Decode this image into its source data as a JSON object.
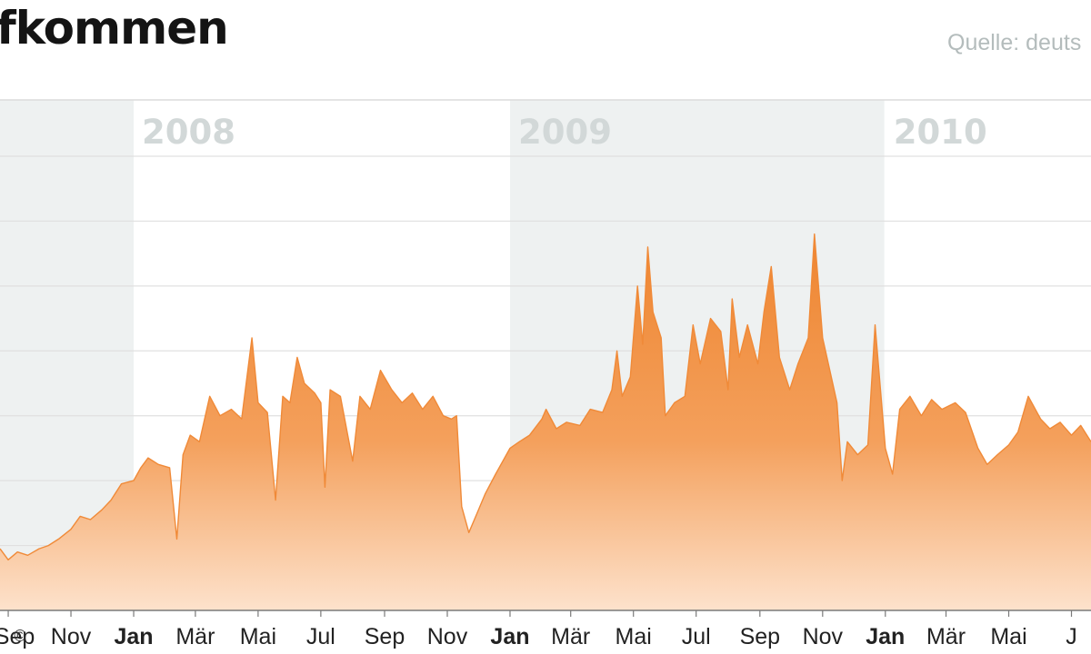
{
  "header": {
    "title": "fkommen",
    "source": "Quelle: deuts"
  },
  "chart_data": {
    "type": "area",
    "title": "fkommen",
    "subtitle": "",
    "xlabel": "",
    "ylabel": "",
    "grid": true,
    "legend": "none",
    "color": "#f08a38",
    "years": [
      {
        "label": "2008",
        "start": "2008-01-01",
        "end": "2008-12-31",
        "shaded": false
      },
      {
        "label": "2009",
        "start": "2009-01-01",
        "end": "2009-12-31",
        "shaded": true
      },
      {
        "label": "2010",
        "start": "2010-01-01",
        "end": "2010-12-31",
        "shaded": false
      }
    ],
    "shaded_before": "2008-01-01",
    "x_range": [
      "2007-08-24",
      "2010-07-20"
    ],
    "y_range": [
      0,
      7
    ],
    "y_gridlines": [
      1,
      2,
      3,
      4,
      5,
      6,
      7
    ],
    "x_ticks": [
      {
        "label": "Sep",
        "date": "2007-09-01",
        "bold": false
      },
      {
        "label": "Nov",
        "date": "2007-11-01",
        "bold": false
      },
      {
        "label": "Jan",
        "date": "2008-01-01",
        "bold": true
      },
      {
        "label": "Mär",
        "date": "2008-03-01",
        "bold": false
      },
      {
        "label": "Mai",
        "date": "2008-05-01",
        "bold": false
      },
      {
        "label": "Jul",
        "date": "2008-07-01",
        "bold": false
      },
      {
        "label": "Sep",
        "date": "2008-09-01",
        "bold": false
      },
      {
        "label": "Nov",
        "date": "2008-11-01",
        "bold": false
      },
      {
        "label": "Jan",
        "date": "2009-01-01",
        "bold": true
      },
      {
        "label": "Mär",
        "date": "2009-03-01",
        "bold": false
      },
      {
        "label": "Mai",
        "date": "2009-05-01",
        "bold": false
      },
      {
        "label": "Jul",
        "date": "2009-07-01",
        "bold": false
      },
      {
        "label": "Sep",
        "date": "2009-09-01",
        "bold": false
      },
      {
        "label": "Nov",
        "date": "2009-11-01",
        "bold": false
      },
      {
        "label": "Jan",
        "date": "2010-01-01",
        "bold": true
      },
      {
        "label": "Mär",
        "date": "2010-03-01",
        "bold": false
      },
      {
        "label": "Mai",
        "date": "2010-05-01",
        "bold": false
      },
      {
        "label": "J",
        "date": "2010-07-01",
        "bold": false
      }
    ],
    "copyright": "©",
    "points": [
      [
        "2007-08-24",
        0.95
      ],
      [
        "2007-09-01",
        0.78
      ],
      [
        "2007-09-10",
        0.9
      ],
      [
        "2007-09-20",
        0.85
      ],
      [
        "2007-10-01",
        0.95
      ],
      [
        "2007-10-10",
        1.0
      ],
      [
        "2007-10-20",
        1.1
      ],
      [
        "2007-11-01",
        1.25
      ],
      [
        "2007-11-10",
        1.45
      ],
      [
        "2007-11-20",
        1.4
      ],
      [
        "2007-12-01",
        1.55
      ],
      [
        "2007-12-10",
        1.7
      ],
      [
        "2007-12-20",
        1.95
      ],
      [
        "2008-01-01",
        2.0
      ],
      [
        "2008-01-08",
        2.2
      ],
      [
        "2008-01-15",
        2.35
      ],
      [
        "2008-01-25",
        2.25
      ],
      [
        "2008-02-05",
        2.2
      ],
      [
        "2008-02-12",
        1.1
      ],
      [
        "2008-02-18",
        2.4
      ],
      [
        "2008-02-25",
        2.7
      ],
      [
        "2008-03-05",
        2.6
      ],
      [
        "2008-03-15",
        3.3
      ],
      [
        "2008-03-25",
        3.0
      ],
      [
        "2008-04-05",
        3.1
      ],
      [
        "2008-04-15",
        2.95
      ],
      [
        "2008-04-25",
        4.2
      ],
      [
        "2008-05-01",
        3.2
      ],
      [
        "2008-05-10",
        3.05
      ],
      [
        "2008-05-18",
        1.7
      ],
      [
        "2008-05-25",
        3.3
      ],
      [
        "2008-06-01",
        3.2
      ],
      [
        "2008-06-08",
        3.9
      ],
      [
        "2008-06-15",
        3.5
      ],
      [
        "2008-06-25",
        3.35
      ],
      [
        "2008-07-01",
        3.2
      ],
      [
        "2008-07-05",
        1.9
      ],
      [
        "2008-07-10",
        3.4
      ],
      [
        "2008-07-20",
        3.3
      ],
      [
        "2008-08-01",
        2.3
      ],
      [
        "2008-08-08",
        3.3
      ],
      [
        "2008-08-18",
        3.1
      ],
      [
        "2008-08-28",
        3.7
      ],
      [
        "2008-09-08",
        3.4
      ],
      [
        "2008-09-18",
        3.2
      ],
      [
        "2008-09-28",
        3.35
      ],
      [
        "2008-10-08",
        3.1
      ],
      [
        "2008-10-18",
        3.3
      ],
      [
        "2008-10-28",
        3.0
      ],
      [
        "2008-11-05",
        2.95
      ],
      [
        "2008-11-10",
        3.0
      ],
      [
        "2008-11-15",
        1.6
      ],
      [
        "2008-11-22",
        1.2
      ],
      [
        "2008-11-30",
        1.5
      ],
      [
        "2008-12-08",
        1.8
      ],
      [
        "2008-12-18",
        2.1
      ],
      [
        "2009-01-01",
        2.5
      ],
      [
        "2009-01-10",
        2.6
      ],
      [
        "2009-01-20",
        2.7
      ],
      [
        "2009-02-01",
        2.95
      ],
      [
        "2009-02-05",
        3.1
      ],
      [
        "2009-02-15",
        2.8
      ],
      [
        "2009-02-25",
        2.9
      ],
      [
        "2009-03-10",
        2.85
      ],
      [
        "2009-03-20",
        3.1
      ],
      [
        "2009-04-01",
        3.05
      ],
      [
        "2009-04-10",
        3.4
      ],
      [
        "2009-04-15",
        4.0
      ],
      [
        "2009-04-20",
        3.3
      ],
      [
        "2009-04-28",
        3.6
      ],
      [
        "2009-05-05",
        5.0
      ],
      [
        "2009-05-10",
        4.1
      ],
      [
        "2009-05-15",
        5.6
      ],
      [
        "2009-05-20",
        4.6
      ],
      [
        "2009-05-28",
        4.2
      ],
      [
        "2009-06-01",
        3.0
      ],
      [
        "2009-06-10",
        3.2
      ],
      [
        "2009-06-20",
        3.3
      ],
      [
        "2009-06-28",
        4.4
      ],
      [
        "2009-07-05",
        3.8
      ],
      [
        "2009-07-15",
        4.5
      ],
      [
        "2009-07-25",
        4.3
      ],
      [
        "2009-08-01",
        3.4
      ],
      [
        "2009-08-05",
        4.8
      ],
      [
        "2009-08-12",
        3.9
      ],
      [
        "2009-08-20",
        4.4
      ],
      [
        "2009-08-30",
        3.8
      ],
      [
        "2009-09-05",
        4.6
      ],
      [
        "2009-09-12",
        5.3
      ],
      [
        "2009-09-20",
        3.9
      ],
      [
        "2009-09-30",
        3.4
      ],
      [
        "2009-10-08",
        3.8
      ],
      [
        "2009-10-18",
        4.2
      ],
      [
        "2009-10-24",
        5.8
      ],
      [
        "2009-11-01",
        4.2
      ],
      [
        "2009-11-08",
        3.7
      ],
      [
        "2009-11-15",
        3.2
      ],
      [
        "2009-11-20",
        2.0
      ],
      [
        "2009-11-25",
        2.6
      ],
      [
        "2009-12-05",
        2.4
      ],
      [
        "2009-12-15",
        2.55
      ],
      [
        "2009-12-22",
        4.4
      ],
      [
        "2010-01-01",
        2.5
      ],
      [
        "2010-01-08",
        2.1
      ],
      [
        "2010-01-15",
        3.1
      ],
      [
        "2010-01-25",
        3.3
      ],
      [
        "2010-02-05",
        3.0
      ],
      [
        "2010-02-15",
        3.25
      ],
      [
        "2010-02-25",
        3.1
      ],
      [
        "2010-03-10",
        3.2
      ],
      [
        "2010-03-20",
        3.05
      ],
      [
        "2010-04-01",
        2.5
      ],
      [
        "2010-04-10",
        2.25
      ],
      [
        "2010-04-20",
        2.4
      ],
      [
        "2010-05-01",
        2.55
      ],
      [
        "2010-05-10",
        2.75
      ],
      [
        "2010-05-20",
        3.3
      ],
      [
        "2010-06-01",
        2.95
      ],
      [
        "2010-06-10",
        2.8
      ],
      [
        "2010-06-20",
        2.9
      ],
      [
        "2010-07-01",
        2.7
      ],
      [
        "2010-07-10",
        2.85
      ],
      [
        "2010-07-20",
        2.6
      ]
    ]
  }
}
